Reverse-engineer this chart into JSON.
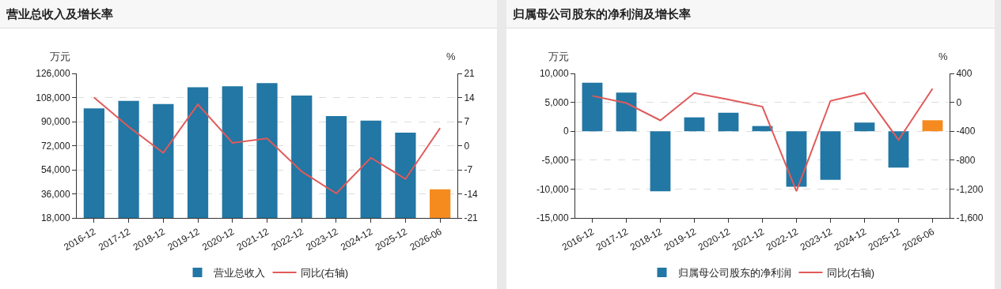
{
  "chart_data": [
    {
      "type": "bar",
      "title": "营业总收入及增长率",
      "ylabel": "万元",
      "y2label": "%",
      "categories": [
        "2016-12",
        "2017-12",
        "2018-12",
        "2019-12",
        "2020-12",
        "2021-12",
        "2022-12",
        "2023-12",
        "2024-12",
        "2025-12",
        "2026-06"
      ],
      "series": [
        {
          "name": "营业总收入",
          "colors": [
            "#2277a4",
            "#2277a4",
            "#2277a4",
            "#2277a4",
            "#2277a4",
            "#2277a4",
            "#2277a4",
            "#2277a4",
            "#2277a4",
            "#2277a4",
            "#f58b1f"
          ],
          "values": [
            99900,
            105500,
            103200,
            115600,
            116400,
            118700,
            109500,
            94200,
            90700,
            81800,
            39400
          ]
        },
        {
          "name": "同比(右轴)",
          "type": "line",
          "axis": "y2",
          "color": "#e05a5a",
          "values": [
            14.0,
            5.5,
            -2.1,
            12.0,
            0.8,
            2.1,
            -7.5,
            -13.9,
            -3.5,
            -9.7,
            5.1
          ]
        }
      ],
      "ylim": [
        18000,
        126000
      ],
      "yticks": [
        {
          "value": 18000,
          "label": "18,000"
        },
        {
          "value": 36000,
          "label": "36,000"
        },
        {
          "value": 54000,
          "label": "54,000"
        },
        {
          "value": 72000,
          "label": "72,000"
        },
        {
          "value": 90000,
          "label": "90,000"
        },
        {
          "value": 108000,
          "label": "108,000"
        },
        {
          "value": 126000,
          "label": "126,000"
        }
      ],
      "y2lim": [
        -21,
        21
      ],
      "y2ticks": [
        -21,
        -14,
        -7,
        0,
        7,
        14,
        21
      ],
      "grid": "y",
      "legend": "bottom",
      "line_style": "solid"
    },
    {
      "type": "bar",
      "title": "归属母公司股东的净利润及增长率",
      "ylabel": "万元",
      "y2label": "%",
      "categories": [
        "2016-12",
        "2017-12",
        "2018-12",
        "2019-12",
        "2020-12",
        "2021-12",
        "2022-12",
        "2023-12",
        "2024-12",
        "2025-12",
        "2026-06"
      ],
      "series": [
        {
          "name": "归属母公司股东的净利润",
          "colors": [
            "#2277a4",
            "#2277a4",
            "#2277a4",
            "#2277a4",
            "#2277a4",
            "#2277a4",
            "#2277a4",
            "#2277a4",
            "#2277a4",
            "#2277a4",
            "#f58b1f"
          ],
          "values": [
            8400,
            6700,
            -10400,
            2400,
            3200,
            900,
            -9600,
            -8400,
            1500,
            -6300,
            1900
          ]
        },
        {
          "name": "同比(右轴)",
          "type": "line",
          "axis": "y2",
          "color": "#e05a5a",
          "values": [
            90,
            -10,
            -250,
            130,
            40,
            -60,
            -1230,
            20,
            130,
            -520,
            190
          ]
        }
      ],
      "ylim": [
        -15000,
        10000
      ],
      "yticks": [
        {
          "value": -15000,
          "label": "-15,000"
        },
        {
          "value": -10000,
          "label": "-10,000"
        },
        {
          "value": -5000,
          "label": "-5,000"
        },
        0,
        {
          "value": 5000,
          "label": "5,000"
        },
        {
          "value": 10000,
          "label": "10,000"
        }
      ],
      "y2lim": [
        -1600,
        400
      ],
      "y2ticks": [
        {
          "value": -1600,
          "label": "-1,600"
        },
        {
          "value": -1200,
          "label": "-1,200"
        },
        -800,
        -400,
        0,
        400
      ],
      "grid": "y",
      "legend": "bottom",
      "line_style": "solid"
    }
  ]
}
